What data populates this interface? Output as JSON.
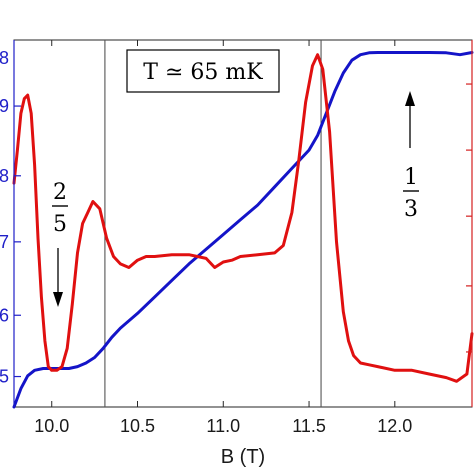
{
  "chart_data": {
    "type": "line",
    "xlabel": "B (T)",
    "xlim": [
      9.78,
      12.45
    ],
    "xticks": [
      "10.0",
      "10.5",
      "11.0",
      "11.5",
      "12.0"
    ],
    "xtick_values": [
      10.0,
      10.5,
      11.0,
      11.5,
      12.0
    ],
    "left_axis": {
      "color": "#1f1fc8",
      "ylim": [
        0.0,
        1.0
      ],
      "tick_values": [
        0.083,
        0.25,
        0.45,
        0.63,
        0.82
      ],
      "tick_labels": [
        "5",
        "6",
        "7",
        "8",
        "9"
      ],
      "top_tick_label": "8"
    },
    "right_axis": {
      "color": "#d42020",
      "ylim": [
        0.0,
        1.0
      ]
    },
    "grid": false,
    "vertical_lines": [
      10.31,
      11.57
    ],
    "series": [
      {
        "color": "#1414c8",
        "axis": "left",
        "x": [
          9.78,
          9.82,
          9.86,
          9.9,
          9.95,
          10.0,
          10.05,
          10.1,
          10.15,
          10.2,
          10.25,
          10.3,
          10.35,
          10.4,
          10.5,
          10.6,
          10.7,
          10.8,
          10.9,
          11.0,
          11.1,
          11.2,
          11.3,
          11.4,
          11.5,
          11.55,
          11.6,
          11.65,
          11.7,
          11.75,
          11.8,
          11.85,
          11.9,
          11.95,
          12.0,
          12.1,
          12.2,
          12.3,
          12.38,
          12.45
        ],
        "y": [
          0.0,
          0.05,
          0.085,
          0.1,
          0.105,
          0.105,
          0.105,
          0.105,
          0.11,
          0.12,
          0.135,
          0.16,
          0.19,
          0.215,
          0.255,
          0.3,
          0.345,
          0.39,
          0.43,
          0.47,
          0.51,
          0.55,
          0.6,
          0.65,
          0.7,
          0.74,
          0.8,
          0.86,
          0.91,
          0.945,
          0.96,
          0.965,
          0.966,
          0.966,
          0.966,
          0.966,
          0.966,
          0.965,
          0.96,
          0.966
        ]
      },
      {
        "color": "#e01010",
        "axis": "right",
        "x": [
          9.78,
          9.8,
          9.82,
          9.84,
          9.86,
          9.88,
          9.9,
          9.92,
          9.94,
          9.96,
          9.98,
          10.0,
          10.03,
          10.06,
          10.09,
          10.12,
          10.15,
          10.18,
          10.21,
          10.24,
          10.28,
          10.32,
          10.36,
          10.4,
          10.45,
          10.5,
          10.55,
          10.6,
          10.7,
          10.8,
          10.9,
          10.95,
          11.0,
          11.05,
          11.1,
          11.2,
          11.3,
          11.35,
          11.4,
          11.44,
          11.48,
          11.52,
          11.55,
          11.58,
          11.62,
          11.66,
          11.7,
          11.73,
          11.76,
          11.8,
          11.85,
          11.9,
          12.0,
          12.1,
          12.2,
          12.3,
          12.36,
          12.42,
          12.45
        ],
        "y": [
          0.61,
          0.7,
          0.8,
          0.84,
          0.85,
          0.8,
          0.66,
          0.46,
          0.3,
          0.18,
          0.11,
          0.1,
          0.1,
          0.11,
          0.16,
          0.28,
          0.42,
          0.5,
          0.53,
          0.56,
          0.54,
          0.46,
          0.41,
          0.39,
          0.38,
          0.4,
          0.41,
          0.41,
          0.415,
          0.415,
          0.405,
          0.38,
          0.395,
          0.4,
          0.41,
          0.415,
          0.42,
          0.44,
          0.53,
          0.67,
          0.83,
          0.93,
          0.96,
          0.92,
          0.75,
          0.45,
          0.26,
          0.18,
          0.14,
          0.12,
          0.115,
          0.11,
          0.1,
          0.1,
          0.09,
          0.08,
          0.07,
          0.09,
          0.2
        ]
      }
    ],
    "annotations": [
      {
        "text": "T ≃ 65 mK"
      },
      {
        "text": "2/5",
        "numerator": "2",
        "denominator": "5",
        "arrow": "down"
      },
      {
        "text": "1/3",
        "numerator": "1",
        "denominator": "3",
        "arrow": "up"
      }
    ]
  }
}
